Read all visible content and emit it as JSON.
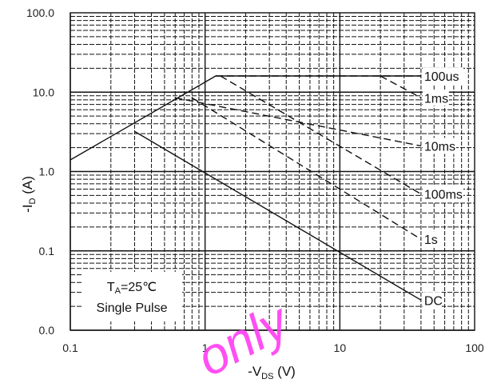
{
  "chart_data": {
    "type": "line",
    "x_scale": "log",
    "y_scale": "log",
    "xlim": [
      0.1,
      100
    ],
    "ylim": [
      0.01,
      100
    ],
    "xticks": [
      0.1,
      1,
      10,
      100
    ],
    "xtick_labels": [
      "0.1",
      "1",
      "10",
      "100"
    ],
    "yticks": [
      0.01,
      0.1,
      1,
      10,
      100
    ],
    "ytick_labels": [
      "0.0",
      "0.1",
      "1.0",
      "10.0",
      "100.0"
    ],
    "grid": true,
    "xlabel_main": "-V",
    "xlabel_sub": "DS",
    "xlabel_unit": " (V)",
    "ylabel_main": "-I",
    "ylabel_sub": "D",
    "ylabel_unit": " (A)",
    "series": [
      {
        "name": "100us",
        "style": "solid",
        "x": [
          0.1,
          1.2,
          40
        ],
        "y": [
          1.4,
          16,
          16
        ]
      },
      {
        "name": "1ms",
        "style": "dashed",
        "x": [
          1.2,
          40
        ],
        "y": [
          16,
          16
        ]
      },
      {
        "name": "1ms",
        "style": "dashed",
        "x": [
          20,
          40
        ],
        "y": [
          16,
          8.5
        ]
      },
      {
        "name": "10ms",
        "style": "dashed",
        "x": [
          0.6,
          40
        ],
        "y": [
          8.5,
          2.1
        ]
      },
      {
        "name": "100ms",
        "style": "dashed",
        "x": [
          1.3,
          40
        ],
        "y": [
          16,
          0.52
        ]
      },
      {
        "name": "1s",
        "style": "dashed",
        "x": [
          0.8,
          40
        ],
        "y": [
          8.5,
          0.14
        ]
      },
      {
        "name": "DC",
        "style": "solid",
        "x": [
          0.3,
          40
        ],
        "y": [
          3.2,
          0.024
        ]
      }
    ],
    "labels": [
      {
        "text": "100us",
        "x": 40,
        "y": 16
      },
      {
        "text": "1ms",
        "x": 40,
        "y": 8.5
      },
      {
        "text": "10ms",
        "x": 40,
        "y": 2.1
      },
      {
        "text": "100ms",
        "x": 40,
        "y": 0.52
      },
      {
        "text": "1s",
        "x": 40,
        "y": 0.14
      },
      {
        "text": "DC",
        "x": 40,
        "y": 0.024
      }
    ],
    "annotation": {
      "line1_main": "T",
      "line1_sub": "A",
      "line1_rest": "=25℃",
      "line2": "Single Pulse"
    }
  },
  "watermark": "only",
  "colors": {
    "line": "#111111",
    "grid": "#111111",
    "watermark": "#ff3df2"
  }
}
